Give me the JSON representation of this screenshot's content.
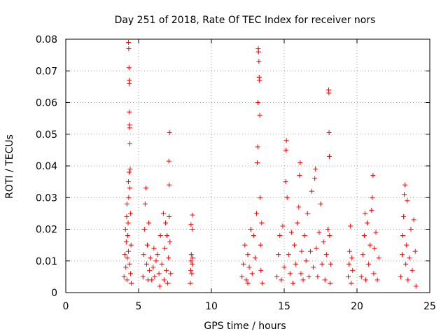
{
  "chart_data": {
    "type": "scatter",
    "title": "Day 251 of 2018, Rate Of TEC Index for receiver nors",
    "xlabel": "GPS time / hours",
    "ylabel": "ROTI / TECUs",
    "xlim": [
      0,
      25
    ],
    "ylim": [
      0,
      0.08
    ],
    "xticks": [
      0,
      5,
      10,
      15,
      20,
      25
    ],
    "xtick_labels": [
      "0",
      "5",
      "10",
      "15",
      "20",
      "25"
    ],
    "yticks": [
      0,
      0.01,
      0.02,
      0.03,
      0.04,
      0.05,
      0.06,
      0.07,
      0.08
    ],
    "ytick_labels": [
      "0",
      "0.01",
      "0.02",
      "0.03",
      "0.04",
      "0.05",
      "0.06",
      "0.07",
      "0.08"
    ],
    "grid": true,
    "marker": "+",
    "marker_color": "#ff0000",
    "series": [
      {
        "points": [
          [
            4.0,
            0.005
          ],
          [
            4.05,
            0.012
          ],
          [
            4.1,
            0.02
          ],
          [
            4.12,
            0.008
          ],
          [
            4.15,
            0.016
          ],
          [
            4.18,
            0.024
          ],
          [
            4.2,
            0.004
          ],
          [
            4.22,
            0.011
          ],
          [
            4.25,
            0.018
          ],
          [
            4.28,
            0.022
          ],
          [
            4.3,
            0.013
          ],
          [
            4.32,
            0.03
          ],
          [
            4.35,
            0.038
          ],
          [
            4.38,
            0.009
          ],
          [
            4.4,
            0.033
          ],
          [
            4.3,
            0.079
          ],
          [
            4.32,
            0.077
          ],
          [
            4.34,
            0.071
          ],
          [
            4.35,
            0.067
          ],
          [
            4.36,
            0.066
          ],
          [
            4.37,
            0.057
          ],
          [
            4.38,
            0.053
          ],
          [
            4.39,
            0.052
          ],
          [
            4.4,
            0.047
          ],
          [
            4.42,
            0.039
          ],
          [
            4.45,
            0.025
          ],
          [
            4.45,
            0.006
          ],
          [
            4.48,
            0.015
          ],
          [
            4.5,
            0.003
          ],
          [
            4.2,
            0.028
          ],
          [
            4.3,
            0.035
          ],
          [
            5.3,
            0.005
          ],
          [
            5.35,
            0.012
          ],
          [
            5.4,
            0.02
          ],
          [
            5.45,
            0.028
          ],
          [
            5.5,
            0.033
          ],
          [
            5.55,
            0.009
          ],
          [
            5.6,
            0.015
          ],
          [
            5.65,
            0.004
          ],
          [
            5.7,
            0.022
          ],
          [
            5.75,
            0.007
          ],
          [
            5.8,
            0.011
          ],
          [
            5.9,
            0.004
          ],
          [
            6.0,
            0.008
          ],
          [
            6.05,
            0.014
          ],
          [
            6.1,
            0.005
          ],
          [
            6.2,
            0.01
          ],
          [
            6.3,
            0.012
          ],
          [
            6.4,
            0.006
          ],
          [
            6.5,
            0.018
          ],
          [
            6.6,
            0.009
          ],
          [
            6.7,
            0.025
          ],
          [
            6.75,
            0.004
          ],
          [
            6.8,
            0.014
          ],
          [
            6.85,
            0.022
          ],
          [
            6.9,
            0.007
          ],
          [
            6.95,
            0.018
          ],
          [
            7.0,
            0.003
          ],
          [
            7.05,
            0.011
          ],
          [
            7.1,
            0.024
          ],
          [
            7.1,
            0.034
          ],
          [
            7.08,
            0.0415
          ],
          [
            7.12,
            0.0505
          ],
          [
            7.15,
            0.016
          ],
          [
            7.2,
            0.006
          ],
          [
            6.45,
            0.002
          ],
          [
            8.55,
            0.003
          ],
          [
            8.58,
            0.007
          ],
          [
            8.6,
            0.01
          ],
          [
            8.62,
            0.012
          ],
          [
            8.65,
            0.006
          ],
          [
            8.68,
            0.009
          ],
          [
            8.7,
            0.02
          ],
          [
            8.7,
            0.0245
          ],
          [
            8.72,
            0.011
          ],
          [
            8.6,
            0.0215
          ],
          [
            12.1,
            0.005
          ],
          [
            12.2,
            0.009
          ],
          [
            12.3,
            0.015
          ],
          [
            12.4,
            0.004
          ],
          [
            12.5,
            0.012
          ],
          [
            12.6,
            0.008
          ],
          [
            12.7,
            0.02
          ],
          [
            12.8,
            0.006
          ],
          [
            12.9,
            0.018
          ],
          [
            13.0,
            0.011
          ],
          [
            13.1,
            0.025
          ],
          [
            13.15,
            0.041
          ],
          [
            13.18,
            0.046
          ],
          [
            13.2,
            0.06
          ],
          [
            13.22,
            0.077
          ],
          [
            13.24,
            0.076
          ],
          [
            13.26,
            0.073
          ],
          [
            13.28,
            0.068
          ],
          [
            13.3,
            0.067
          ],
          [
            13.32,
            0.056
          ],
          [
            13.35,
            0.03
          ],
          [
            13.38,
            0.015
          ],
          [
            13.4,
            0.007
          ],
          [
            13.45,
            0.022
          ],
          [
            13.5,
            0.003
          ],
          [
            12.5,
            0.003
          ],
          [
            14.5,
            0.005
          ],
          [
            14.6,
            0.012
          ],
          [
            14.7,
            0.018
          ],
          [
            14.8,
            0.004
          ],
          [
            14.9,
            0.021
          ],
          [
            15.0,
            0.008
          ],
          [
            15.1,
            0.035
          ],
          [
            15.12,
            0.045
          ],
          [
            15.15,
            0.048
          ],
          [
            15.2,
            0.03
          ],
          [
            15.3,
            0.012
          ],
          [
            15.4,
            0.006
          ],
          [
            15.5,
            0.019
          ],
          [
            15.6,
            0.003
          ],
          [
            15.7,
            0.015
          ],
          [
            15.8,
            0.009
          ],
          [
            15.9,
            0.022
          ],
          [
            16.0,
            0.027
          ],
          [
            16.05,
            0.037
          ],
          [
            16.1,
            0.041
          ],
          [
            16.15,
            0.006
          ],
          [
            16.2,
            0.013
          ],
          [
            16.3,
            0.004
          ],
          [
            16.4,
            0.018
          ],
          [
            16.5,
            0.01
          ],
          [
            16.6,
            0.025
          ],
          [
            16.7,
            0.005
          ],
          [
            16.8,
            0.013
          ],
          [
            16.9,
            0.032
          ],
          [
            17.0,
            0.008
          ],
          [
            17.1,
            0.036
          ],
          [
            17.15,
            0.039
          ],
          [
            17.2,
            0.014
          ],
          [
            17.3,
            0.005
          ],
          [
            17.4,
            0.019
          ],
          [
            17.5,
            0.028
          ],
          [
            17.6,
            0.009
          ],
          [
            17.7,
            0.016
          ],
          [
            17.8,
            0.004
          ],
          [
            17.9,
            0.012
          ],
          [
            18.0,
            0.02
          ],
          [
            18.05,
            0.064
          ],
          [
            18.07,
            0.063
          ],
          [
            18.08,
            0.0505
          ],
          [
            18.1,
            0.043
          ],
          [
            18.12,
            0.018
          ],
          [
            18.15,
            0.003
          ],
          [
            18.2,
            0.009
          ],
          [
            19.4,
            0.005
          ],
          [
            19.45,
            0.009
          ],
          [
            19.5,
            0.013
          ],
          [
            19.55,
            0.021
          ],
          [
            19.6,
            0.003
          ],
          [
            19.65,
            0.011
          ],
          [
            19.7,
            0.007
          ],
          [
            20.3,
            0.005
          ],
          [
            20.4,
            0.012
          ],
          [
            20.5,
            0.018
          ],
          [
            20.6,
            0.004
          ],
          [
            20.7,
            0.022
          ],
          [
            20.8,
            0.009
          ],
          [
            20.9,
            0.015
          ],
          [
            21.0,
            0.026
          ],
          [
            21.05,
            0.03
          ],
          [
            21.1,
            0.037
          ],
          [
            21.15,
            0.006
          ],
          [
            21.2,
            0.014
          ],
          [
            21.3,
            0.019
          ],
          [
            21.4,
            0.004
          ],
          [
            21.5,
            0.011
          ],
          [
            20.55,
            0.025
          ],
          [
            23.0,
            0.005
          ],
          [
            23.1,
            0.012
          ],
          [
            23.15,
            0.018
          ],
          [
            23.2,
            0.024
          ],
          [
            23.25,
            0.031
          ],
          [
            23.3,
            0.034
          ],
          [
            23.35,
            0.009
          ],
          [
            23.4,
            0.015
          ],
          [
            23.5,
            0.004
          ],
          [
            23.6,
            0.011
          ],
          [
            23.7,
            0.02
          ],
          [
            23.8,
            0.007
          ],
          [
            23.9,
            0.023
          ],
          [
            24.0,
            0.013
          ],
          [
            24.05,
            0.002
          ],
          [
            23.45,
            0.029
          ]
        ]
      }
    ]
  }
}
